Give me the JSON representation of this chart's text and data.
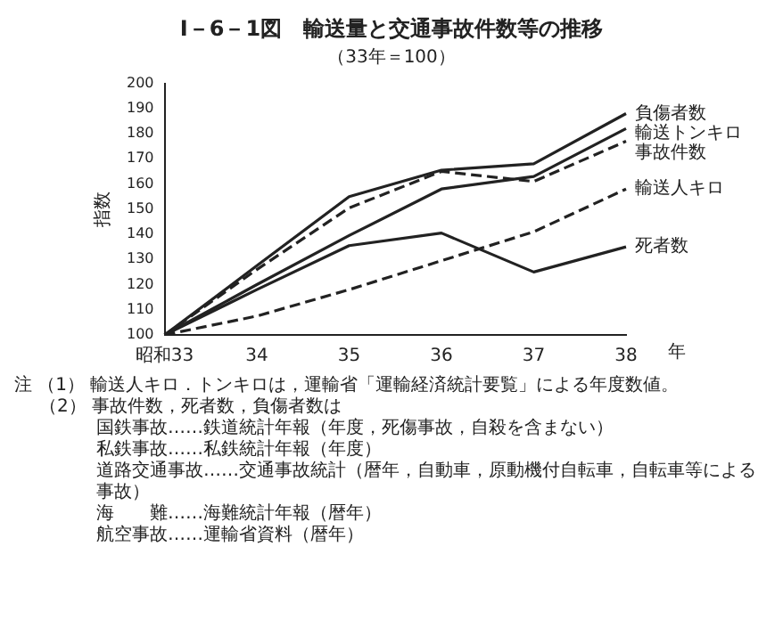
{
  "chart_data": {
    "type": "line",
    "title": "I－6－1図　輸送量と交通事故件数等の推移",
    "subtitle": "（33年＝100）",
    "ylabel": "指数",
    "xlabel": "年",
    "categories": [
      "昭和33",
      "34",
      "35",
      "36",
      "37",
      "38"
    ],
    "ylim": [
      100,
      200
    ],
    "yticks": [
      100,
      110,
      120,
      130,
      140,
      150,
      160,
      170,
      180,
      190,
      200
    ],
    "grid": false,
    "legend": false,
    "marker": "none",
    "series": [
      {
        "name": "負傷者数",
        "color": "#222222",
        "line_style": "solid",
        "values": [
          100,
          127.5,
          155,
          165.5,
          168,
          188
        ]
      },
      {
        "name": "輸送トンキロ",
        "color": "#222222",
        "line_style": "solid",
        "values": [
          100,
          120,
          139.5,
          158,
          163,
          182
        ]
      },
      {
        "name": "事故件数",
        "color": "#222222",
        "line_style": "dashed",
        "values": [
          100,
          126,
          150.5,
          165,
          161,
          177
        ]
      },
      {
        "name": "輸送人キロ",
        "color": "#222222",
        "line_style": "dashed",
        "values": [
          100,
          107.5,
          118,
          129.5,
          141,
          158
        ]
      },
      {
        "name": "死者数",
        "color": "#222222",
        "line_style": "solid",
        "values": [
          100,
          118,
          135.5,
          140.5,
          125,
          135
        ]
      }
    ],
    "annotations": [
      "注 （1） 輸送人キロ．トンキロは，運輸省「運輸経済統計要覧」による年度数値。",
      "（2） 事故件数，死者数，負傷者数は",
      "国鉄事故……鉄道統計年報（年度，死傷事故，自殺を含まない）",
      "私鉄事故……私鉄統計年報（年度）",
      "道路交通事故……交通事故統計（暦年，自動車，原動機付自転車，自転車等による事故）",
      "海　　難……海難統計年報（暦年）",
      "航空事故……運輸省資料（暦年）"
    ]
  }
}
